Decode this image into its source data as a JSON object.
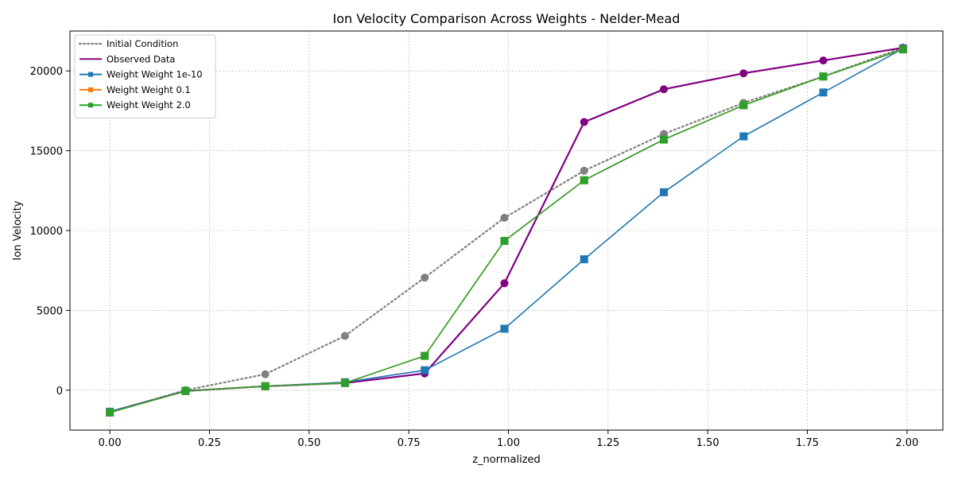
{
  "chart_data": {
    "type": "line",
    "title": "Ion Velocity Comparison Across Weights - Nelder-Mead",
    "xlabel": "z_normalized",
    "ylabel": "Ion Velocity",
    "xlim": [
      -0.1,
      2.09
    ],
    "ylim": [
      -2500,
      22500
    ],
    "xticks": [
      {
        "value": 0.0,
        "label": "0.00"
      },
      {
        "value": 0.25,
        "label": "0.25"
      },
      {
        "value": 0.5,
        "label": "0.50"
      },
      {
        "value": 0.75,
        "label": "0.75"
      },
      {
        "value": 1.0,
        "label": "1.00"
      },
      {
        "value": 1.25,
        "label": "1.25"
      },
      {
        "value": 1.5,
        "label": "1.50"
      },
      {
        "value": 1.75,
        "label": "1.75"
      },
      {
        "value": 2.0,
        "label": "2.00"
      }
    ],
    "yticks": [
      {
        "value": 0,
        "label": "0"
      },
      {
        "value": 5000,
        "label": "5000"
      },
      {
        "value": 10000,
        "label": "10000"
      },
      {
        "value": 15000,
        "label": "15000"
      },
      {
        "value": 20000,
        "label": "20000"
      }
    ],
    "grid": true,
    "legend_position": "top-left",
    "x": [
      0.0,
      0.19,
      0.39,
      0.59,
      0.79,
      0.99,
      1.19,
      1.39,
      1.59,
      1.79,
      1.99
    ],
    "series": [
      {
        "name": "Initial Condition",
        "color": "#808080",
        "style": "dotted",
        "marker": "circle",
        "values": [
          -1400,
          0,
          1000,
          3400,
          7050,
          10800,
          13750,
          16050,
          18000,
          19650,
          21450
        ]
      },
      {
        "name": "Observed Data",
        "color": "#800080",
        "style": "solid",
        "marker": "circle",
        "values": [
          -1350,
          -50,
          250,
          450,
          1050,
          6700,
          16800,
          18850,
          19850,
          20650,
          21450
        ]
      },
      {
        "name": "Weight Weight 1e-10",
        "color": "#1f77b4",
        "style": "solid",
        "marker": "square",
        "values": [
          -1350,
          -50,
          250,
          500,
          1250,
          3850,
          8200,
          12400,
          15900,
          18650,
          21400
        ]
      },
      {
        "name": "Weight Weight 0.1",
        "color": "#ff7f0e",
        "style": "solid",
        "marker": "square",
        "values": [
          -1400,
          -50,
          250,
          450,
          2150,
          9350,
          13150,
          15700,
          17850,
          19650,
          21350
        ]
      },
      {
        "name": "Weight Weight 2.0",
        "color": "#2ca02c",
        "style": "solid",
        "marker": "square",
        "values": [
          -1400,
          -50,
          250,
          450,
          2150,
          9350,
          13150,
          15700,
          17850,
          19650,
          21350
        ]
      }
    ]
  }
}
